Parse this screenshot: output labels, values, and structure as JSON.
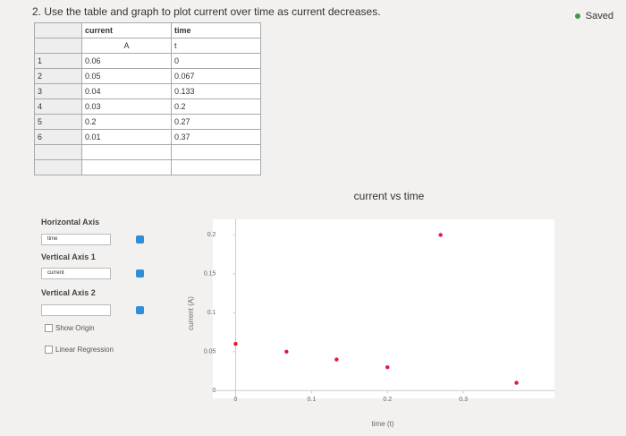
{
  "question": "2. Use the table and graph to plot current over time as current decreases.",
  "status": "Saved",
  "table": {
    "headers": [
      "current",
      "time"
    ],
    "units": [
      "A",
      "t"
    ],
    "row_numbers": [
      1,
      2,
      3,
      4,
      5,
      6
    ],
    "rows": [
      [
        0.06,
        0
      ],
      [
        0.05,
        0.067
      ],
      [
        0.04,
        0.133
      ],
      [
        0.03,
        0.2
      ],
      [
        0.2,
        0.27
      ],
      [
        0.01,
        0.37
      ]
    ]
  },
  "controls": {
    "horizontal_axis": {
      "label": "Horizontal Axis",
      "selected": "time"
    },
    "vertical_axis_1": {
      "label": "Vertical Axis 1",
      "selected": "current"
    },
    "vertical_axis_2": {
      "label": "Vertical Axis 2"
    },
    "show_origin": "Show Origin",
    "linear_regression": "Linear Regression"
  },
  "chart_data": {
    "type": "scatter",
    "title": "current vs time",
    "x_label": "time (t)",
    "y_label": "current (A)",
    "x": [
      0,
      0.067,
      0.133,
      0.2,
      0.27,
      0.37
    ],
    "series": [
      {
        "name": "current",
        "color": "#e3173d",
        "values": [
          0.06,
          0.05,
          0.04,
          0.03,
          0.2,
          0.01
        ]
      }
    ],
    "xlim": [
      -0.03,
      0.42
    ],
    "ylim": [
      -0.01,
      0.22
    ],
    "xticks": [
      0,
      0.1,
      0.2,
      0.3
    ],
    "yticks": [
      0,
      0.05,
      0.1,
      0.15,
      0.2
    ]
  }
}
